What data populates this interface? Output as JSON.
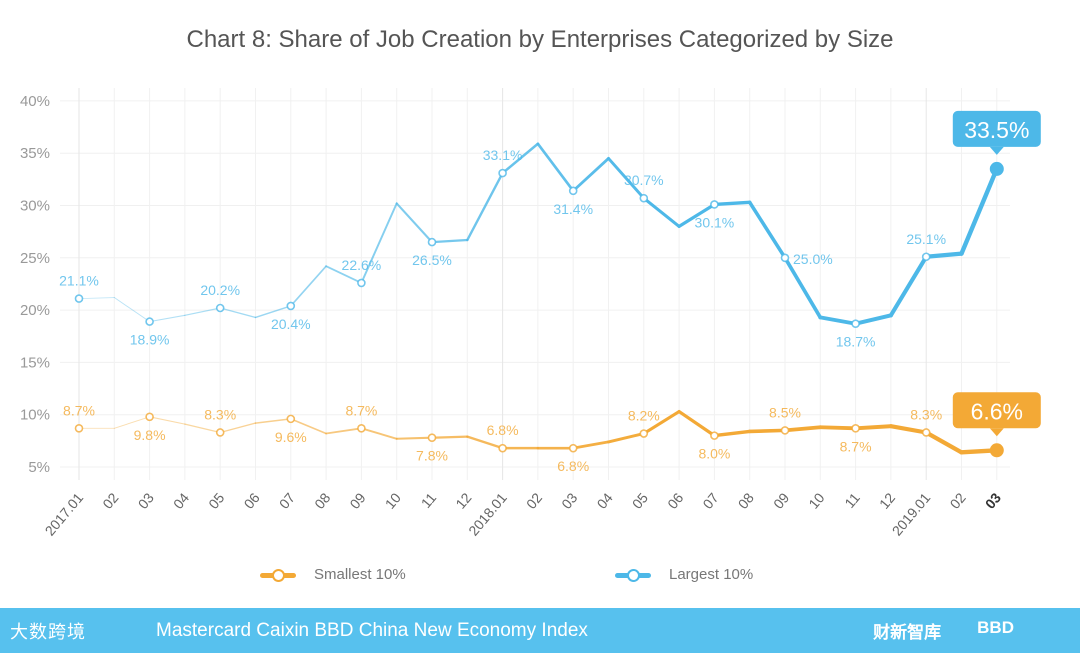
{
  "chart_data": {
    "type": "line",
    "title": "Chart 8: Share of Job Creation by Enterprises Categorized by Size",
    "xlabel": "",
    "ylabel": "",
    "ylim": [
      5,
      40
    ],
    "yticks": [
      "5%",
      "10%",
      "15%",
      "20%",
      "25%",
      "30%",
      "35%",
      "40%"
    ],
    "ytick_values": [
      5,
      10,
      15,
      20,
      25,
      30,
      35,
      40
    ],
    "categories": [
      "2017.01",
      "02",
      "03",
      "04",
      "05",
      "06",
      "07",
      "08",
      "09",
      "10",
      "11",
      "12",
      "2018.01",
      "02",
      "03",
      "04",
      "05",
      "06",
      "07",
      "08",
      "09",
      "10",
      "11",
      "12",
      "2019.01",
      "02",
      "03"
    ],
    "grid": true,
    "legend_placement": "bottom",
    "series": [
      {
        "name": "Smallest 10%",
        "color": "#f3a936",
        "values": [
          8.7,
          8.7,
          9.8,
          9.1,
          8.3,
          9.2,
          9.6,
          8.2,
          8.7,
          7.7,
          7.8,
          7.9,
          6.8,
          6.8,
          6.8,
          7.4,
          8.2,
          10.3,
          8.0,
          8.4,
          8.5,
          8.8,
          8.7,
          8.9,
          8.3,
          6.4,
          6.6
        ],
        "labels": [
          {
            "i": 0,
            "text": "8.7%",
            "pos": "above"
          },
          {
            "i": 2,
            "text": "9.8%",
            "pos": "below"
          },
          {
            "i": 4,
            "text": "8.3%",
            "pos": "above"
          },
          {
            "i": 6,
            "text": "9.6%",
            "pos": "below"
          },
          {
            "i": 8,
            "text": "8.7%",
            "pos": "above"
          },
          {
            "i": 10,
            "text": "7.8%",
            "pos": "below"
          },
          {
            "i": 12,
            "text": "6.8%",
            "pos": "above"
          },
          {
            "i": 14,
            "text": "6.8%",
            "pos": "below"
          },
          {
            "i": 16,
            "text": "8.2%",
            "pos": "above"
          },
          {
            "i": 18,
            "text": "8.0%",
            "pos": "below"
          },
          {
            "i": 20,
            "text": "8.5%",
            "pos": "above"
          },
          {
            "i": 22,
            "text": "8.7%",
            "pos": "below"
          },
          {
            "i": 24,
            "text": "8.3%",
            "pos": "above"
          }
        ],
        "callout": "6.6%"
      },
      {
        "name": "Largest 10%",
        "color": "#4db8e8",
        "values": [
          21.1,
          21.2,
          18.9,
          19.5,
          20.2,
          19.3,
          20.4,
          24.2,
          22.6,
          30.2,
          26.5,
          26.7,
          33.1,
          35.9,
          31.4,
          34.5,
          30.7,
          28.0,
          30.1,
          30.3,
          25.0,
          19.3,
          18.7,
          19.5,
          25.1,
          25.4,
          33.5
        ],
        "labels": [
          {
            "i": 0,
            "text": "21.1%",
            "pos": "above"
          },
          {
            "i": 2,
            "text": "18.9%",
            "pos": "below"
          },
          {
            "i": 4,
            "text": "20.2%",
            "pos": "above"
          },
          {
            "i": 6,
            "text": "20.4%",
            "pos": "below"
          },
          {
            "i": 8,
            "text": "22.6%",
            "pos": "above"
          },
          {
            "i": 10,
            "text": "26.5%",
            "pos": "below"
          },
          {
            "i": 12,
            "text": "33.1%",
            "pos": "above"
          },
          {
            "i": 14,
            "text": "31.4%",
            "pos": "below"
          },
          {
            "i": 16,
            "text": "30.7%",
            "pos": "above"
          },
          {
            "i": 18,
            "text": "30.1%",
            "pos": "below"
          },
          {
            "i": 20,
            "text": "25.0%",
            "pos": "right"
          },
          {
            "i": 22,
            "text": "18.7%",
            "pos": "below"
          },
          {
            "i": 24,
            "text": "25.1%",
            "pos": "above"
          }
        ],
        "callout": "33.5%"
      }
    ]
  },
  "legend": {
    "smallest": "Smallest 10%",
    "largest": "Largest 10%"
  },
  "footer": {
    "logo": "大数跨境",
    "title": "Mastercard Caixin BBD China New Economy Index",
    "brand1": "财新智库",
    "brand2": "BBD"
  }
}
